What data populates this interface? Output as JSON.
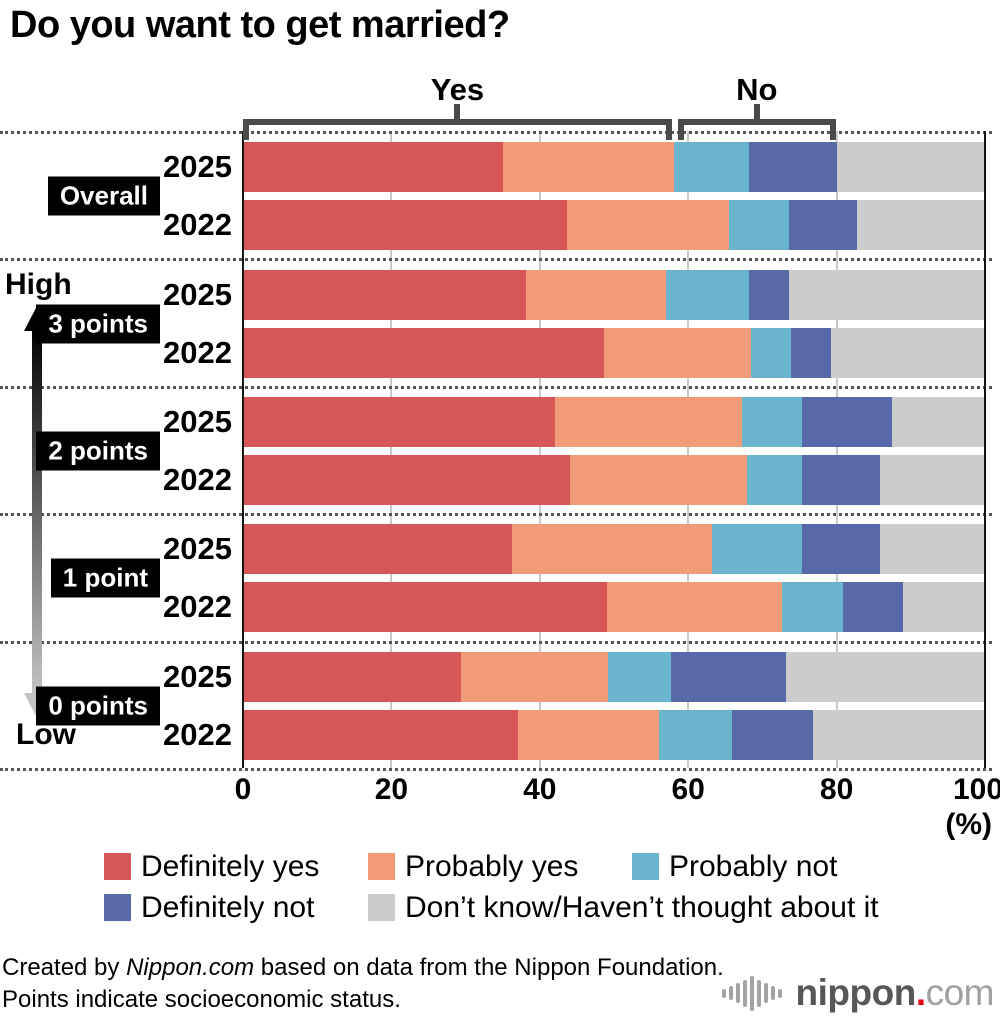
{
  "header": {
    "title": "Do you want to get married?"
  },
  "chart_data": {
    "type": "bar",
    "orientation": "horizontal",
    "stacked": true,
    "title": "Do you want to get married?",
    "unit": "(%)",
    "xlim": [
      0,
      100
    ],
    "xticks": [
      0,
      20,
      40,
      60,
      80,
      100
    ],
    "high_label": "High",
    "low_label": "Low",
    "series": [
      {
        "name": "Definitely yes",
        "color": "#d75757"
      },
      {
        "name": "Probably yes",
        "color": "#f19b78"
      },
      {
        "name": "Probably not",
        "color": "#6ab5ce"
      },
      {
        "name": "Definitely not",
        "color": "#5769a8"
      },
      {
        "name": "Don’t know/Haven’t thought about it",
        "color": "#cccccc"
      }
    ],
    "groups": [
      {
        "label": "Overall",
        "rows": [
          {
            "year": "2025",
            "values": [
              35.0,
              23.1,
              10.1,
              11.9,
              19.9
            ]
          },
          {
            "year": "2022",
            "values": [
              43.7,
              21.8,
              8.1,
              9.2,
              17.2
            ]
          }
        ]
      },
      {
        "label": "3 points",
        "rows": [
          {
            "year": "2025",
            "values": [
              38.2,
              18.8,
              11.2,
              5.4,
              26.4
            ]
          },
          {
            "year": "2022",
            "values": [
              48.7,
              19.7,
              5.4,
              5.4,
              20.8
            ]
          }
        ]
      },
      {
        "label": "2 points",
        "rows": [
          {
            "year": "2025",
            "values": [
              42.0,
              25.2,
              8.2,
              12.1,
              12.5
            ]
          },
          {
            "year": "2022",
            "values": [
              44.1,
              23.8,
              7.5,
              10.4,
              14.2
            ]
          }
        ]
      },
      {
        "label": "1 point",
        "rows": [
          {
            "year": "2025",
            "values": [
              36.3,
              26.9,
              12.2,
              10.4,
              14.2
            ]
          },
          {
            "year": "2022",
            "values": [
              49.0,
              23.7,
              8.1,
              8.2,
              11.0
            ]
          }
        ]
      },
      {
        "label": "0 points",
        "rows": [
          {
            "year": "2025",
            "values": [
              29.4,
              19.8,
              8.5,
              15.5,
              26.8
            ]
          },
          {
            "year": "2022",
            "values": [
              37.0,
              19.0,
              9.9,
              10.9,
              23.2
            ]
          }
        ]
      }
    ],
    "brackets": [
      {
        "label": "Yes",
        "from": 0,
        "to": 57.8
      },
      {
        "label": "No",
        "from": 58.6,
        "to": 79.9
      }
    ]
  },
  "footer": {
    "line1_prefix": "Created by ",
    "line1_brand": "Nippon.com",
    "line1_suffix": " based on data from the Nippon Foundation.",
    "line2": "Points indicate socioeconomic status."
  },
  "logo": {
    "name": "nippon",
    "dot": ".",
    "tld": "com",
    "colors": {
      "word": "#585656",
      "dot": "#e60012",
      "tld": "#9fa0a0",
      "wave": "#a3a3a3"
    }
  }
}
